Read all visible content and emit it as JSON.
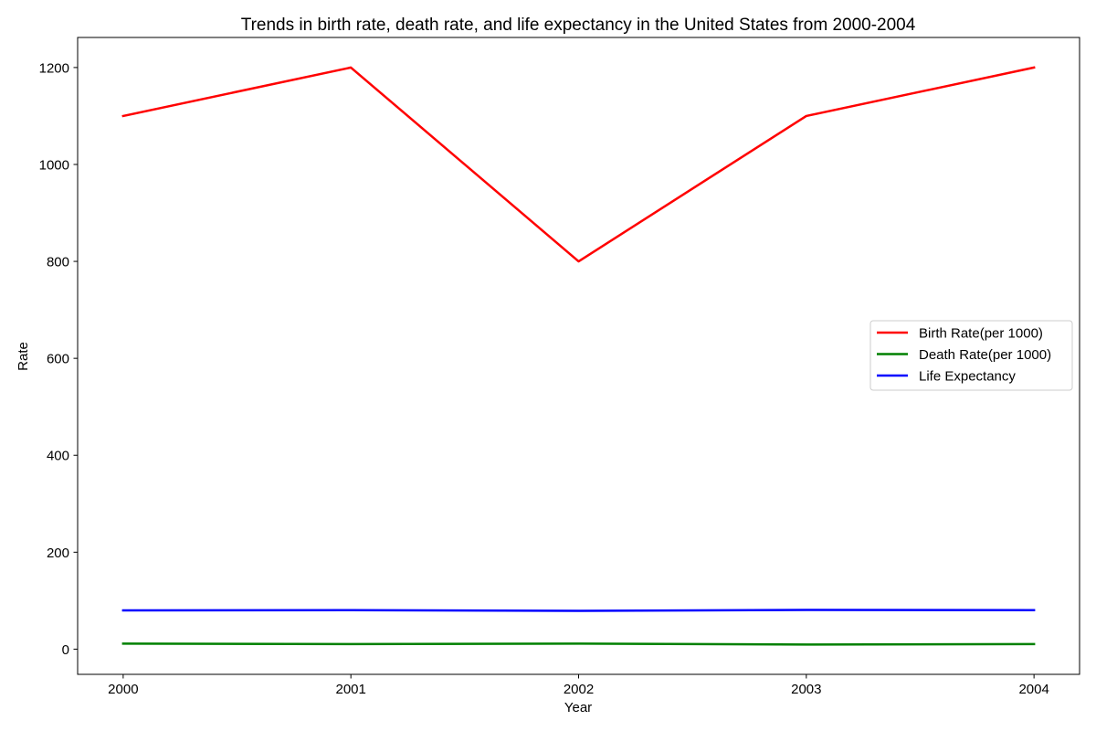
{
  "chart_data": {
    "type": "line",
    "title": "Trends in birth rate, death rate, and life expectancy in the United States from 2000-2004",
    "xlabel": "Year",
    "ylabel": "Rate",
    "categories": [
      "2000",
      "2001",
      "2002",
      "2003",
      "2004"
    ],
    "x": [
      2000,
      2001,
      2002,
      2003,
      2004
    ],
    "xlim": [
      1999.8,
      2004.2
    ],
    "ylim": [
      -52,
      1262
    ],
    "yticks": [
      0,
      200,
      400,
      600,
      800,
      1000,
      1200
    ],
    "ytick_labels": [
      "0",
      "200",
      "400",
      "600",
      "800",
      "1000",
      "1200"
    ],
    "grid": false,
    "legend_position": "center-right",
    "series": [
      {
        "name": "Birth Rate(per 1000)",
        "color": "#ff0000",
        "values": [
          1100,
          1200,
          800,
          1100,
          1200
        ]
      },
      {
        "name": "Death Rate(per 1000)",
        "color": "#008000",
        "values": [
          11.5,
          10.5,
          11.5,
          9.5,
          10.5
        ]
      },
      {
        "name": "Life Expectancy",
        "color": "#0000ff",
        "values": [
          80,
          80.5,
          79,
          81,
          80.5
        ]
      }
    ]
  }
}
